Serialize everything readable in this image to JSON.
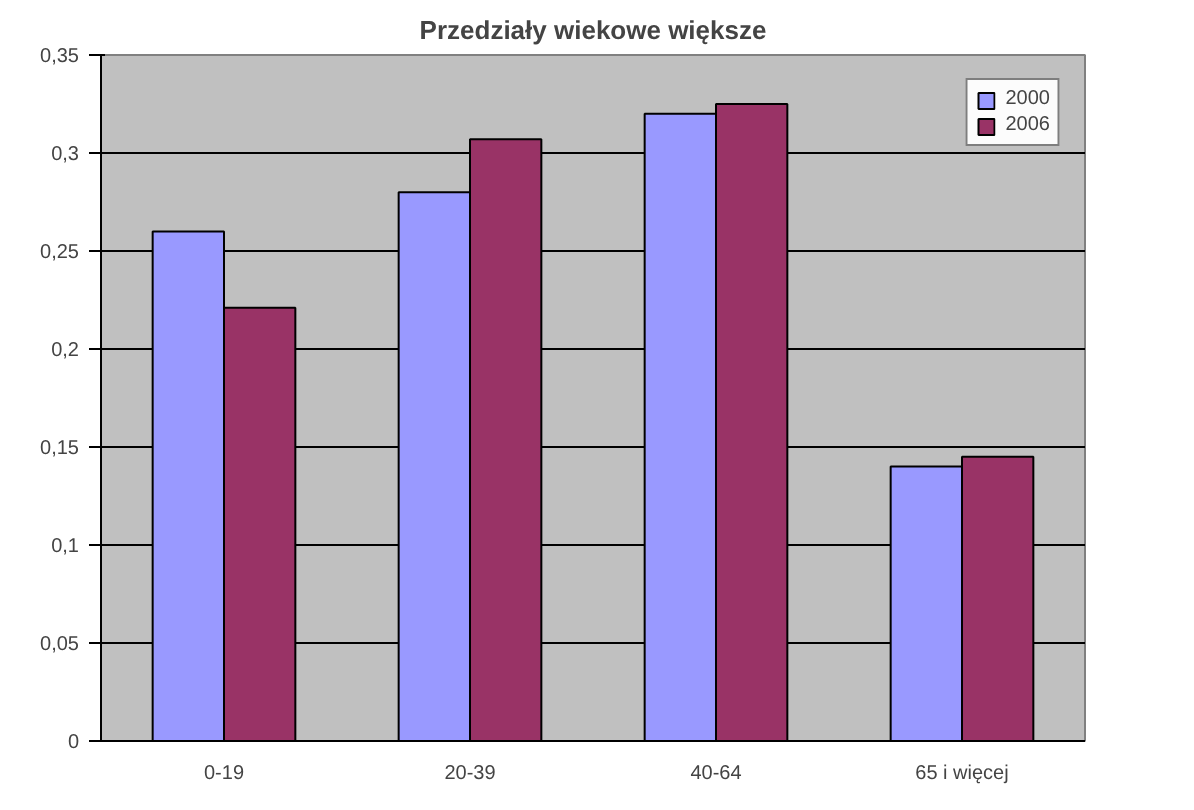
{
  "chart_data": {
    "type": "bar",
    "title": "Przedziały wiekowe większe",
    "categories": [
      "0-19",
      "20-39",
      "40-64",
      "65 i więcej"
    ],
    "series": [
      {
        "name": "2000",
        "color": "#9999ff",
        "values": [
          0.26,
          0.28,
          0.32,
          0.14
        ]
      },
      {
        "name": "2006",
        "color": "#993366",
        "values": [
          0.221,
          0.307,
          0.325,
          0.145
        ]
      }
    ],
    "ylim": [
      0,
      0.35
    ],
    "yticks": [
      0,
      {
        "value": 0.05,
        "label": "0,05"
      },
      {
        "value": 0.1,
        "label": "0,1"
      },
      {
        "value": 0.15,
        "label": "0,15"
      },
      {
        "value": 0.2,
        "label": "0,2"
      },
      {
        "value": 0.25,
        "label": "0,25"
      },
      {
        "value": 0.3,
        "label": "0,3"
      },
      {
        "value": 0.35,
        "label": "0,35"
      }
    ],
    "grid": "y",
    "legend": "top right"
  }
}
